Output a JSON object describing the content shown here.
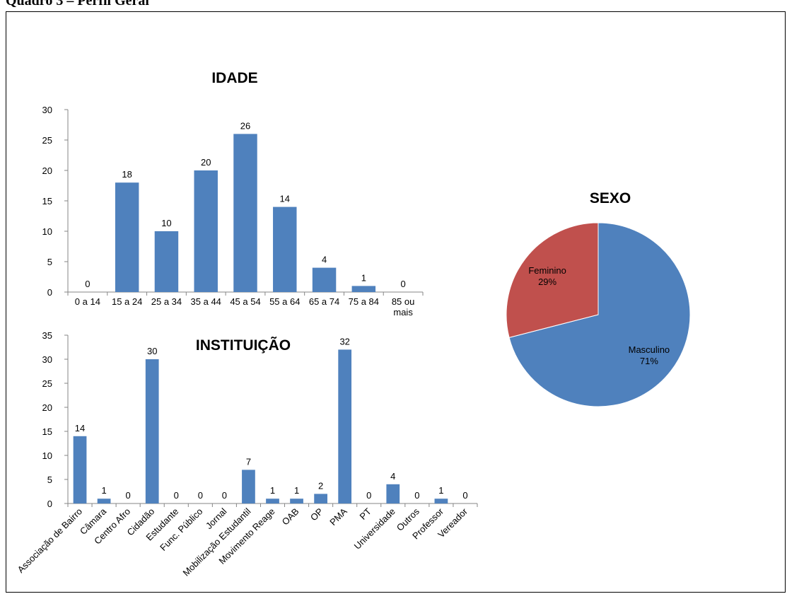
{
  "page": {
    "heading": "Quadro 3 – Perfil Geral"
  },
  "colors": {
    "bar": "#4F81BD",
    "masculino": "#4F81BD",
    "feminino": "#C0504D",
    "axis": "#868686",
    "slice_border": "#ffffff"
  },
  "chart_data": [
    {
      "id": "idade",
      "type": "bar",
      "title": "IDADE",
      "categories": [
        "0 a 14",
        "15 a 24",
        "25 a 34",
        "35 a 44",
        "45 a 54",
        "55 a 64",
        "65 a 74",
        "75 a 84",
        "85 ou mais"
      ],
      "values": [
        0,
        18,
        10,
        20,
        26,
        14,
        4,
        1,
        0
      ],
      "ylim": [
        0,
        30
      ],
      "yticks": [
        0,
        5,
        10,
        15,
        20,
        25,
        30
      ],
      "grid": false,
      "data_labels": true
    },
    {
      "id": "instituicao",
      "type": "bar",
      "title": "INSTITUIÇÃO",
      "categories": [
        "Associação de Bairro",
        "Câmara",
        "Centro Afro",
        "Cidadão",
        "Estudante",
        "Func. Público",
        "Jornal",
        "Mobilização Estudantil",
        "Movimento Reage",
        "OAB",
        "OP",
        "PMA",
        "PT",
        "Universidade",
        "Outros",
        "Professor",
        "Vereador"
      ],
      "values": [
        14,
        1,
        0,
        30,
        0,
        0,
        0,
        7,
        1,
        1,
        2,
        32,
        0,
        4,
        0,
        1,
        0
      ],
      "ylim": [
        0,
        35
      ],
      "yticks": [
        0,
        5,
        10,
        15,
        20,
        25,
        30,
        35
      ],
      "grid": false,
      "data_labels": true
    },
    {
      "id": "sexo",
      "type": "pie",
      "title": "SEXO",
      "slices": [
        {
          "label": "Masculino",
          "value": 71,
          "percent_label": "71%"
        },
        {
          "label": "Feminino",
          "value": 29,
          "percent_label": "29%"
        }
      ]
    }
  ]
}
